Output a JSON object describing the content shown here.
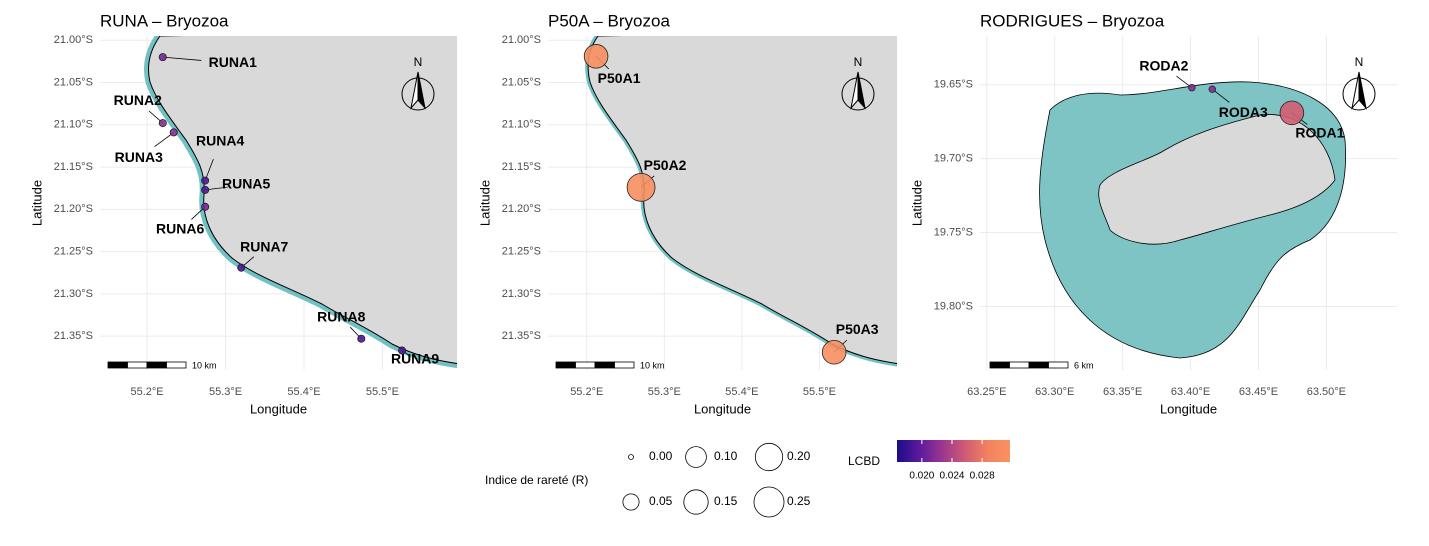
{
  "panels": [
    {
      "title": "RUNA – Bryozoa",
      "x_label": "Longitude",
      "y_label": "Latitude",
      "scale_bar": "10 km",
      "north": "N",
      "xlim": [
        55.14,
        55.595
      ],
      "ylim": [
        -21.39,
        -20.995
      ],
      "xticks": [
        {
          "value": 55.2,
          "label": "55.2°E"
        },
        {
          "value": 55.3,
          "label": "55.3°E"
        },
        {
          "value": 55.4,
          "label": "55.4°E"
        },
        {
          "value": 55.5,
          "label": "55.5°E"
        }
      ],
      "yticks": [
        {
          "value": -21.0,
          "label": "21.00°S"
        },
        {
          "value": -21.05,
          "label": "21.05°S"
        },
        {
          "value": -21.1,
          "label": "21.10°S"
        },
        {
          "value": -21.15,
          "label": "21.15°S"
        },
        {
          "value": -21.2,
          "label": "21.20°S"
        },
        {
          "value": -21.25,
          "label": "21.25°S"
        },
        {
          "value": -21.3,
          "label": "21.30°S"
        },
        {
          "value": -21.35,
          "label": "21.35°S"
        }
      ],
      "sites": [
        {
          "label": "RUNA1",
          "lon": 55.22,
          "lat": -21.02,
          "rarity": 0.002,
          "lcbd": 0.021
        },
        {
          "label": "RUNA2",
          "lon": 55.22,
          "lat": -21.098,
          "rarity": 0.002,
          "lcbd": 0.022
        },
        {
          "label": "RUNA3",
          "lon": 55.234,
          "lat": -21.109,
          "rarity": 0.002,
          "lcbd": 0.022
        },
        {
          "label": "RUNA4",
          "lon": 55.274,
          "lat": -21.166,
          "rarity": 0.002,
          "lcbd": 0.019
        },
        {
          "label": "RUNA5",
          "lon": 55.274,
          "lat": -21.177,
          "rarity": 0.002,
          "lcbd": 0.019
        },
        {
          "label": "RUNA6",
          "lon": 55.274,
          "lat": -21.197,
          "rarity": 0.002,
          "lcbd": 0.021
        },
        {
          "label": "RUNA7",
          "lon": 55.32,
          "lat": -21.269,
          "rarity": 0.002,
          "lcbd": 0.019
        },
        {
          "label": "RUNA8",
          "lon": 55.473,
          "lat": -21.353,
          "rarity": 0.002,
          "lcbd": 0.019
        },
        {
          "label": "RUNA9",
          "lon": 55.525,
          "lat": -21.367,
          "rarity": 0.002,
          "lcbd": 0.019
        }
      ]
    },
    {
      "title": "P50A – Bryozoa",
      "x_label": "Longitude",
      "y_label": "Latitude",
      "scale_bar": "10 km",
      "north": "N",
      "xlim": [
        55.15,
        55.6
      ],
      "ylim": [
        -21.39,
        -20.995
      ],
      "xticks": [
        {
          "value": 55.2,
          "label": "55.2°E"
        },
        {
          "value": 55.3,
          "label": "55.3°E"
        },
        {
          "value": 55.4,
          "label": "55.4°E"
        },
        {
          "value": 55.5,
          "label": "55.5°E"
        }
      ],
      "yticks": [
        {
          "value": -21.0,
          "label": "21.00°S"
        },
        {
          "value": -21.05,
          "label": "21.05°S"
        },
        {
          "value": -21.1,
          "label": "21.10°S"
        },
        {
          "value": -21.15,
          "label": "21.15°S"
        },
        {
          "value": -21.2,
          "label": "21.20°S"
        },
        {
          "value": -21.25,
          "label": "21.25°S"
        },
        {
          "value": -21.3,
          "label": "21.30°S"
        },
        {
          "value": -21.35,
          "label": "21.35°S"
        }
      ],
      "sites": [
        {
          "label": "P50A1",
          "lon": 55.212,
          "lat": -21.019,
          "rarity": 0.14,
          "lcbd": 0.031
        },
        {
          "label": "P50A2",
          "lon": 55.27,
          "lat": -21.174,
          "rarity": 0.21,
          "lcbd": 0.031
        },
        {
          "label": "P50A3",
          "lon": 55.519,
          "lat": -21.369,
          "rarity": 0.14,
          "lcbd": 0.031
        }
      ]
    },
    {
      "title": "RODRIGUES – Bryozoa",
      "x_label": "Longitude",
      "y_label": "Latitude",
      "scale_bar": "6 km",
      "north": "N",
      "xlim": [
        63.245,
        63.552
      ],
      "ylim": [
        -19.843,
        -19.617
      ],
      "xticks": [
        {
          "value": 63.25,
          "label": "63.25°E"
        },
        {
          "value": 63.3,
          "label": "63.30°E"
        },
        {
          "value": 63.35,
          "label": "63.35°E"
        },
        {
          "value": 63.4,
          "label": "63.40°E"
        },
        {
          "value": 63.45,
          "label": "63.45°E"
        },
        {
          "value": 63.5,
          "label": "63.50°E"
        }
      ],
      "yticks": [
        {
          "value": -19.65,
          "label": "19.65°S"
        },
        {
          "value": -19.7,
          "label": "19.70°S"
        },
        {
          "value": -19.75,
          "label": "19.75°S"
        },
        {
          "value": -19.8,
          "label": "19.80°S"
        }
      ],
      "sites": [
        {
          "label": "RODA1",
          "lon": 63.4746,
          "lat": -19.669,
          "rarity": 0.14,
          "lcbd": 0.026
        },
        {
          "label": "RODA2",
          "lon": 63.401,
          "lat": -19.652,
          "rarity": 0.001,
          "lcbd": 0.022
        },
        {
          "label": "RODA3",
          "lon": 63.416,
          "lat": -19.653,
          "rarity": 0.001,
          "lcbd": 0.022
        }
      ]
    }
  ],
  "legend": {
    "size_title": "Indice de rareté (R)",
    "size_lim": [
      0,
      0.25
    ],
    "size_items": [
      {
        "value": 0,
        "label": "0.00"
      },
      {
        "value": 0.05,
        "label": "0.05"
      },
      {
        "value": 0.1,
        "label": "0.10"
      },
      {
        "value": 0.15,
        "label": "0.15"
      },
      {
        "value": 0.2,
        "label": "0.20"
      },
      {
        "value": 0.25,
        "label": "0.25"
      }
    ],
    "color_title": "LCBD",
    "color_lim": [
      0.0167,
      0.0317
    ],
    "color_ticks": [
      {
        "value": 0.02,
        "label": "0.020"
      },
      {
        "value": 0.024,
        "label": "0.024"
      },
      {
        "value": 0.028,
        "label": "0.028"
      }
    ],
    "palette": [
      "#1b0c8a",
      "#5c1a9c",
      "#9b3690",
      "#cf5a74",
      "#f3825f",
      "#fa9160"
    ]
  }
}
